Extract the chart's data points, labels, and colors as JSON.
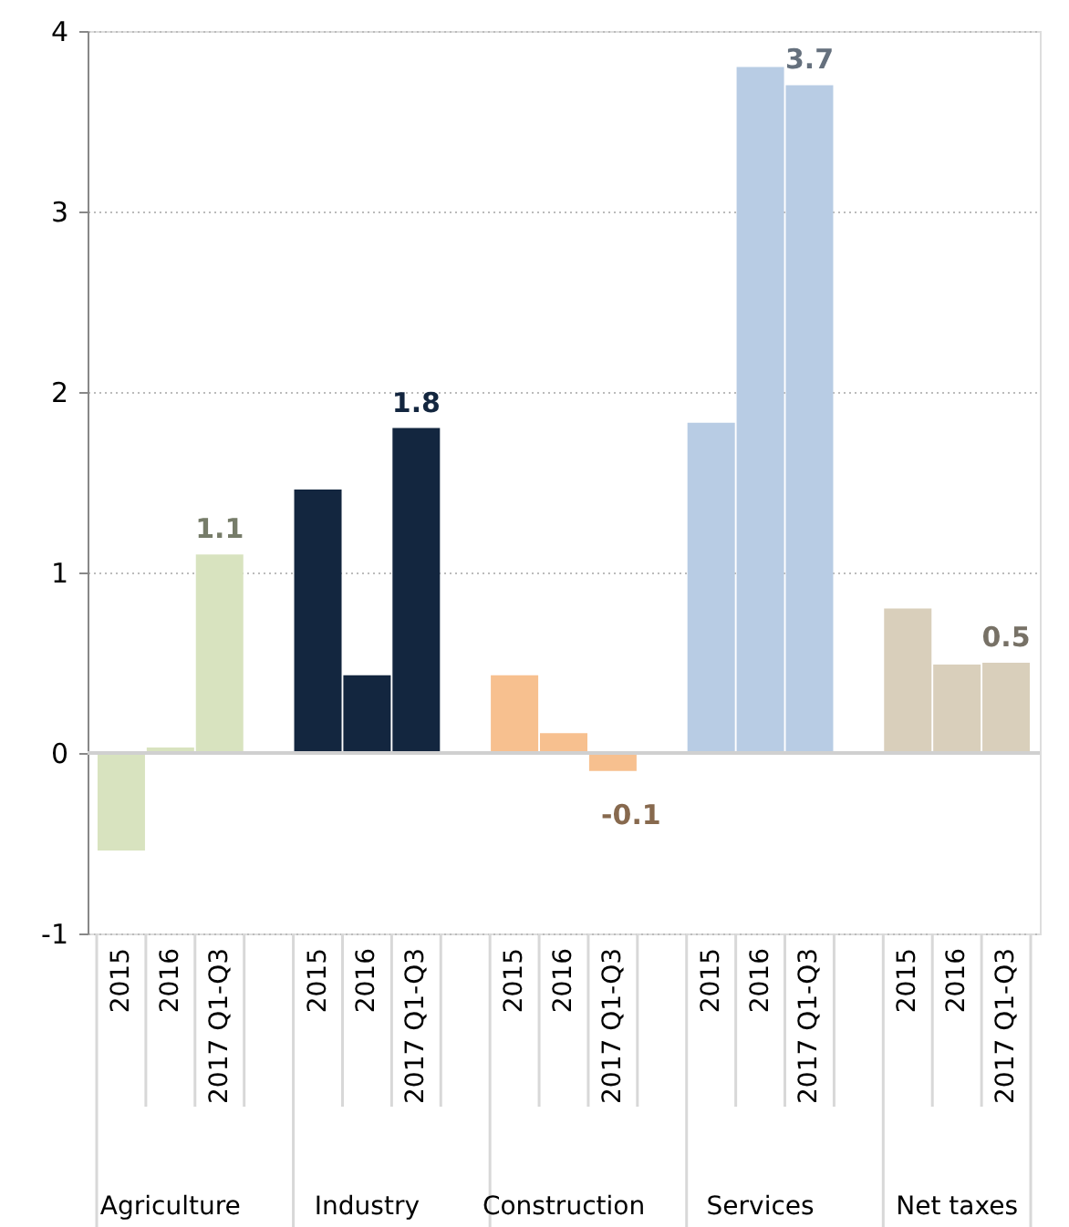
{
  "chart_data": {
    "type": "bar",
    "categories": [
      "2015",
      "2016",
      "2017 Q1-Q3",
      "2015",
      "2016",
      "2017 Q1-Q3",
      "2015",
      "2016",
      "2017 Q1-Q3",
      "2015",
      "2016",
      "2017 Q1-Q3",
      "2015",
      "2016",
      "2017 Q1-Q3"
    ],
    "values": [
      -0.54,
      0.03,
      1.1,
      1.46,
      0.43,
      1.8,
      0.43,
      0.11,
      -0.1,
      1.83,
      3.8,
      3.7,
      0.8,
      0.49,
      0.5
    ],
    "colors": [
      "#d8e3bf",
      "#d8e3bf",
      "#d8e3bf",
      "#13263f",
      "#13263f",
      "#13263f",
      "#f7c08f",
      "#f7c08f",
      "#f7c08f",
      "#b8cce4",
      "#b8cce4",
      "#b8cce4",
      "#d9cfbb",
      "#d9cfbb",
      "#d9cfbb"
    ],
    "value_labels": [
      null,
      null,
      "1.1",
      null,
      null,
      "1.8",
      null,
      null,
      "-0.1",
      null,
      null,
      "3.7",
      null,
      null,
      "0.5"
    ],
    "annotations": [
      "Agriculture",
      "Industry",
      "Construction",
      "Services",
      "Net taxes"
    ],
    "ylim": [
      -1,
      4
    ],
    "yticks": [
      -1,
      0,
      1,
      2,
      3,
      4
    ],
    "grid": "y",
    "legend": false
  }
}
